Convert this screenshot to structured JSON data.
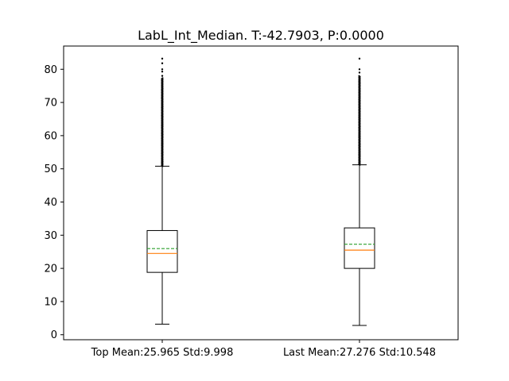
{
  "chart_data": {
    "type": "box",
    "title": "LabL_Int_Median. T:-42.7903, P:0.0000",
    "xlabel": "",
    "ylabel": "",
    "ylim": [
      -1.5,
      87
    ],
    "yticks": [
      0,
      10,
      20,
      30,
      40,
      50,
      60,
      70,
      80
    ],
    "grid": false,
    "categories": [
      "Top Mean:25.965 Std:9.998",
      "Last Mean:27.276 Std:10.548"
    ],
    "boxes": [
      {
        "label": "Top Mean:25.965 Std:9.998",
        "whisker_low": 3.2,
        "q1": 18.8,
        "median": 24.5,
        "mean": 25.965,
        "q3": 31.4,
        "whisker_high": 50.8,
        "outliers_from": 50.8,
        "outliers_to": 77.5,
        "sparse_outliers": [
          78.0,
          79.3,
          80.0,
          81.8,
          83.2
        ]
      },
      {
        "label": "Last Mean:27.276 Std:10.548",
        "whisker_low": 2.8,
        "q1": 20.0,
        "median": 25.5,
        "mean": 27.276,
        "q3": 32.2,
        "whisker_high": 51.2,
        "outliers_from": 51.2,
        "outliers_to": 78.0,
        "sparse_outliers": [
          79.0,
          80.0,
          83.2
        ]
      }
    ],
    "colors": {
      "box": "#000000",
      "median": "#ff7f0e",
      "mean": "#2ca02c",
      "outlier": "#000000"
    }
  }
}
